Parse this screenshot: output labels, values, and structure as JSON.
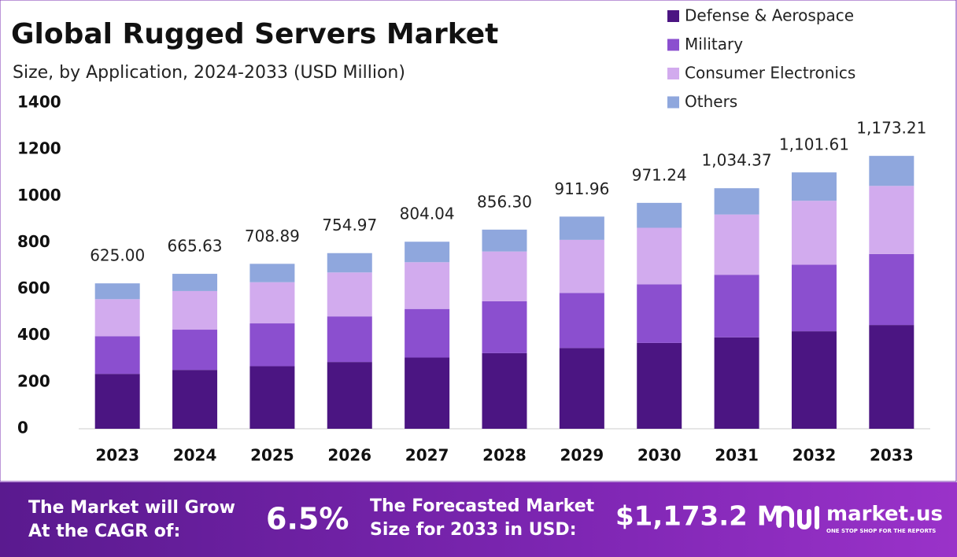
{
  "chart_data": {
    "type": "stacked_bar",
    "title": "Global Rugged Servers Market",
    "subtitle": "Size, by Application, 2024-2033 (USD Million)",
    "categories": [
      "2023",
      "2024",
      "2025",
      "2026",
      "2027",
      "2028",
      "2029",
      "2030",
      "2031",
      "2032",
      "2033"
    ],
    "series": [
      {
        "name": "Defense & Aerospace",
        "color": "#4b1582",
        "values": [
          236,
          253,
          269,
          287,
          306,
          325,
          347,
          369,
          393,
          419,
          446
        ]
      },
      {
        "name": "Military",
        "color": "#8b4fcf",
        "values": [
          162,
          173,
          184,
          196,
          209,
          223,
          237,
          252,
          269,
          286,
          305
        ]
      },
      {
        "name": "Consumer Electronics",
        "color": "#d2abee",
        "values": [
          159,
          166,
          177,
          189,
          201,
          214,
          228,
          243,
          259,
          275,
          293
        ]
      },
      {
        "name": "Others",
        "color": "#8fa7dd",
        "values": [
          68,
          74,
          79,
          83,
          88,
          94,
          100,
          107,
          113,
          122,
          129
        ]
      }
    ],
    "totals": {
      "values": [
        625,
        665.63,
        708.89,
        754.97,
        804.04,
        856.3,
        911.96,
        971.24,
        1034.37,
        1101.61,
        1173.21
      ],
      "value_labels": [
        "625.00",
        "665.63",
        "708.89",
        "754.97",
        "804.04",
        "856.30",
        "911.96",
        "971.24",
        "1,034.37",
        "1,101.61",
        "1,173.21"
      ]
    },
    "ylim": [
      0,
      1400
    ],
    "yticks": [
      0,
      200,
      400,
      600,
      800,
      1000,
      1200,
      1400
    ],
    "grid": false,
    "legend": "top-right"
  },
  "footer": {
    "cagr_label": [
      "The Market will Grow",
      "At the CAGR of:"
    ],
    "cagr": "6.5%",
    "forecast_label": [
      "The Forecasted Market",
      "Size for 2033 in USD:"
    ],
    "forecast": "$1,173.2 M",
    "brand": "market.us",
    "tagline": "ONE STOP SHOP FOR THE REPORTS"
  }
}
